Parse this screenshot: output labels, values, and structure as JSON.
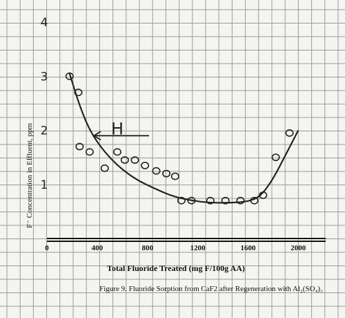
{
  "chart_data": {
    "type": "scatter",
    "title": "",
    "xlabel": "Total Fluoride Treated (mg F/100g AA)",
    "ylabel": "F⁻ Concentration in Effluent, ppm",
    "caption": "Figure 9. Fluoride Sorption from CaF2 after Regeneration with Al₂(SO₄)₃",
    "xlim": [
      0,
      2300
    ],
    "ylim": [
      0,
      4
    ],
    "x_ticks": [
      "0",
      "400",
      "800",
      "1200",
      "1600",
      "2000"
    ],
    "y_ticks": [
      "1",
      "2",
      "3",
      "4"
    ],
    "grid": true,
    "series": [
      {
        "points": [
          [
            180,
            3.0
          ],
          [
            250,
            2.7
          ],
          [
            260,
            1.7
          ],
          [
            340,
            1.6
          ],
          [
            460,
            1.3
          ],
          [
            560,
            1.6
          ],
          [
            620,
            1.45
          ],
          [
            700,
            1.45
          ],
          [
            780,
            1.35
          ],
          [
            870,
            1.25
          ],
          [
            950,
            1.2
          ],
          [
            1020,
            1.15
          ],
          [
            1070,
            0.7
          ],
          [
            1150,
            0.7
          ],
          [
            1300,
            0.7
          ],
          [
            1420,
            0.7
          ],
          [
            1540,
            0.7
          ],
          [
            1650,
            0.7
          ],
          [
            1720,
            0.8
          ],
          [
            1820,
            1.5
          ],
          [
            1930,
            1.95
          ]
        ]
      }
    ],
    "trend_curve": [
      [
        180,
        3.05
      ],
      [
        260,
        2.45
      ],
      [
        340,
        2.0
      ],
      [
        440,
        1.65
      ],
      [
        560,
        1.35
      ],
      [
        700,
        1.1
      ],
      [
        860,
        0.92
      ],
      [
        1000,
        0.78
      ],
      [
        1150,
        0.7
      ],
      [
        1300,
        0.66
      ],
      [
        1450,
        0.66
      ],
      [
        1600,
        0.68
      ],
      [
        1700,
        0.78
      ],
      [
        1800,
        1.1
      ],
      [
        1900,
        1.55
      ],
      [
        2000,
        2.0
      ]
    ],
    "annotation": {
      "label": "H",
      "y": 1.9
    }
  }
}
